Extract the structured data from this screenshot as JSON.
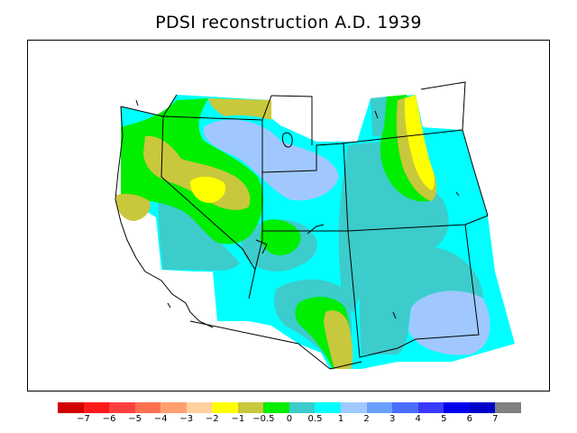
{
  "title": "PDSI reconstruction A.D. 1939",
  "legend": {
    "colors": [
      "#d10000",
      "#ff1a1a",
      "#ff4040",
      "#ff7050",
      "#ff9f70",
      "#ffd0a0",
      "#ffff00",
      "#c8c83c",
      "#00ee00",
      "#3ccccc",
      "#00ffff",
      "#a0c8ff",
      "#6a9fff",
      "#4a6eff",
      "#3a3aff",
      "#0000ee",
      "#0000c8",
      "#808080"
    ],
    "labels": [
      "−7",
      "−6",
      "−5",
      "−4",
      "−3",
      "−2",
      "−1",
      "−0.5",
      "0",
      "0.5",
      "1",
      "2",
      "3",
      "4",
      "5",
      "6",
      "7"
    ]
  },
  "palette": {
    "cyan": "#00ffff",
    "teal": "#3ccccc",
    "lightblue": "#a0c8ff",
    "green": "#00ee00",
    "olive": "#c8c83c",
    "yellow": "#ffff00"
  }
}
